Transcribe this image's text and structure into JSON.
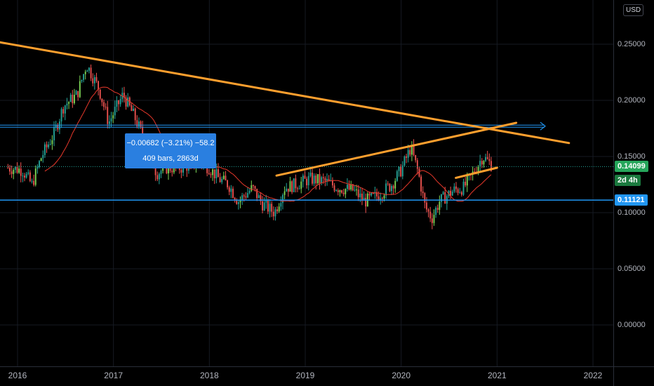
{
  "currency": "USD",
  "chart_data": {
    "type": "candlestick",
    "ylim": [
      -0.045,
      0.275
    ],
    "y_ticks": [
      "0.25000",
      "0.20000",
      "0.15000",
      "0.10000",
      "0.05000",
      "0.00000"
    ],
    "x_ticks": [
      "2016",
      "2017",
      "2018",
      "2019",
      "2020",
      "2021",
      "2022"
    ],
    "current_price": "0.14099",
    "countdown": "2d 4h",
    "support_level": "0.11121",
    "resistance_level": 0.178,
    "measure_label_1": "−0.00682 (−3.21%) −58.2",
    "measure_label_2": "409 bars, 2863d",
    "close_series": {
      "x_start": 2015.9,
      "x_end": 2020.95,
      "anchors": [
        [
          2015.9,
          0.14
        ],
        [
          2016.05,
          0.138
        ],
        [
          2016.15,
          0.125
        ],
        [
          2016.25,
          0.15
        ],
        [
          2016.38,
          0.17
        ],
        [
          2016.48,
          0.195
        ],
        [
          2016.62,
          0.205
        ],
        [
          2016.72,
          0.232
        ],
        [
          2016.85,
          0.21
        ],
        [
          2016.95,
          0.18
        ],
        [
          2017.1,
          0.205
        ],
        [
          2017.22,
          0.185
        ],
        [
          2017.35,
          0.16
        ],
        [
          2017.45,
          0.135
        ],
        [
          2017.55,
          0.14
        ],
        [
          2017.7,
          0.14
        ],
        [
          2017.9,
          0.145
        ],
        [
          2018.0,
          0.14
        ],
        [
          2018.1,
          0.13
        ],
        [
          2018.2,
          0.125
        ],
        [
          2018.3,
          0.11
        ],
        [
          2018.45,
          0.122
        ],
        [
          2018.55,
          0.108
        ],
        [
          2018.68,
          0.1
        ],
        [
          2018.78,
          0.122
        ],
        [
          2018.9,
          0.125
        ],
        [
          2019.05,
          0.13
        ],
        [
          2019.2,
          0.128
        ],
        [
          2019.35,
          0.122
        ],
        [
          2019.5,
          0.12
        ],
        [
          2019.62,
          0.11
        ],
        [
          2019.75,
          0.115
        ],
        [
          2019.9,
          0.125
        ],
        [
          2020.0,
          0.138
        ],
        [
          2020.1,
          0.158
        ],
        [
          2020.18,
          0.135
        ],
        [
          2020.25,
          0.105
        ],
        [
          2020.32,
          0.095
        ],
        [
          2020.4,
          0.11
        ],
        [
          2020.55,
          0.12
        ],
        [
          2020.65,
          0.122
        ],
        [
          2020.75,
          0.135
        ],
        [
          2020.85,
          0.15
        ],
        [
          2020.95,
          0.142
        ]
      ]
    },
    "trendlines": [
      {
        "x1": 2015.8,
        "y1": 0.252,
        "x2": 2021.75,
        "y2": 0.162
      },
      {
        "x1": 2018.7,
        "y1": 0.133,
        "x2": 2021.2,
        "y2": 0.18
      },
      {
        "x1": 2020.57,
        "y1": 0.131,
        "x2": 2021.0,
        "y2": 0.14
      }
    ],
    "colors": {
      "up": "#26a69a",
      "up_bright": "#7ed957",
      "down": "#ef5350",
      "ma": "#e8382b",
      "trend": "#ff9f2e",
      "hline": "#2196f3",
      "grid": "#161a22",
      "price_tag": "#26a65b",
      "support_tag": "#2196f3"
    }
  }
}
